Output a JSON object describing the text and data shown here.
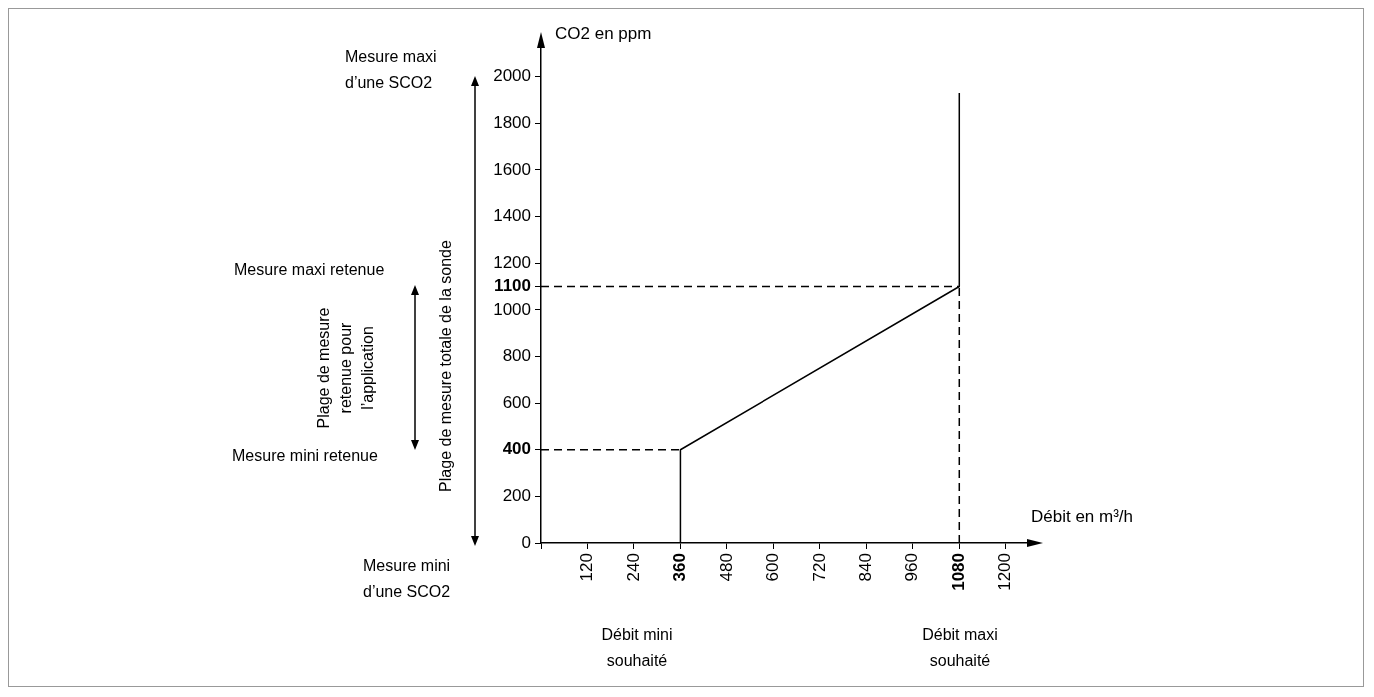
{
  "chart_data": {
    "type": "line",
    "xlabel": "Débit en m³/h",
    "ylabel": "CO2 en ppm",
    "xlim": [
      0,
      1260
    ],
    "ylim": [
      0,
      2140
    ],
    "xticks": [
      {
        "value": 0,
        "label": null
      },
      120,
      240,
      {
        "value": 360,
        "label": "360"
      },
      480,
      600,
      720,
      840,
      960,
      {
        "value": 1080,
        "label": "1080"
      },
      1200
    ],
    "yticks": [
      0,
      200,
      {
        "value": 400,
        "label": "400"
      },
      600,
      800,
      1000,
      {
        "value": 1100,
        "label": "1100"
      },
      1200,
      1400,
      1600,
      1800,
      2000
    ],
    "grid": false,
    "legend": false,
    "marker": "none",
    "series": [
      {
        "color": "#000000",
        "line_style": "solid",
        "x": [
          360,
          360,
          1080,
          1080
        ],
        "values": [
          0,
          400,
          1100,
          1930
        ]
      },
      {
        "color": "#000000",
        "line_style": "dashed",
        "x": [
          0,
          360
        ],
        "values": [
          400,
          400
        ]
      },
      {
        "color": "#000000",
        "line_style": "dashed",
        "x": [
          0,
          1080
        ],
        "values": [
          1100,
          1100
        ]
      },
      {
        "color": "#000000",
        "line_style": "dashed",
        "x": [
          1080,
          1080
        ],
        "values": [
          0,
          1100
        ]
      }
    ],
    "annotations": [
      "Mesure maxi d’une SCO2",
      "Mesure mini d’une SCO2",
      "Mesure maxi retenue",
      "Mesure mini retenue",
      "Plage de mesure retenue pour l’application",
      "Plage de mesure totale de la sonde",
      "Débit mini souhaité",
      "Débit maxi souhaité"
    ]
  }
}
